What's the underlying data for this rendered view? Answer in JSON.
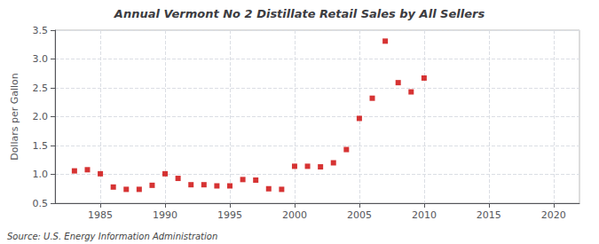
{
  "chart_data": {
    "type": "scatter",
    "title": "Annual Vermont No 2 Distillate Retail Sales by All Sellers",
    "ylabel": "Dollars per Gallon",
    "annotations": [
      "Source: U.S. Energy Information Administration"
    ],
    "x": [
      1983,
      1984,
      1985,
      1986,
      1987,
      1988,
      1989,
      1990,
      1991,
      1992,
      1993,
      1994,
      1995,
      1996,
      1997,
      1998,
      1999,
      2000,
      2001,
      2002,
      2003,
      2004,
      2005,
      2006,
      2007,
      2008,
      2009,
      2010
    ],
    "values": [
      1.06,
      1.08,
      1.01,
      0.78,
      0.74,
      0.74,
      0.81,
      1.01,
      0.93,
      0.82,
      0.82,
      0.8,
      0.8,
      0.91,
      0.9,
      0.75,
      0.74,
      1.14,
      1.14,
      1.13,
      1.2,
      1.43,
      1.97,
      2.32,
      3.31,
      2.59,
      2.43,
      2.67
    ],
    "color": "#cc0000",
    "marker": "square",
    "xlim": [
      1981.5,
      2022
    ],
    "xticks": [
      1985,
      1990,
      1995,
      2000,
      2005,
      2010,
      2015,
      2020
    ],
    "ylim": [
      0.5,
      3.5
    ],
    "yticks": [
      0.5,
      {
        "value": 1.0,
        "label": "1.0"
      },
      1.5,
      {
        "value": 2.0,
        "label": "2.0"
      },
      2.5,
      {
        "value": 3.0,
        "label": "3.0"
      },
      3.5
    ],
    "grid": true
  }
}
